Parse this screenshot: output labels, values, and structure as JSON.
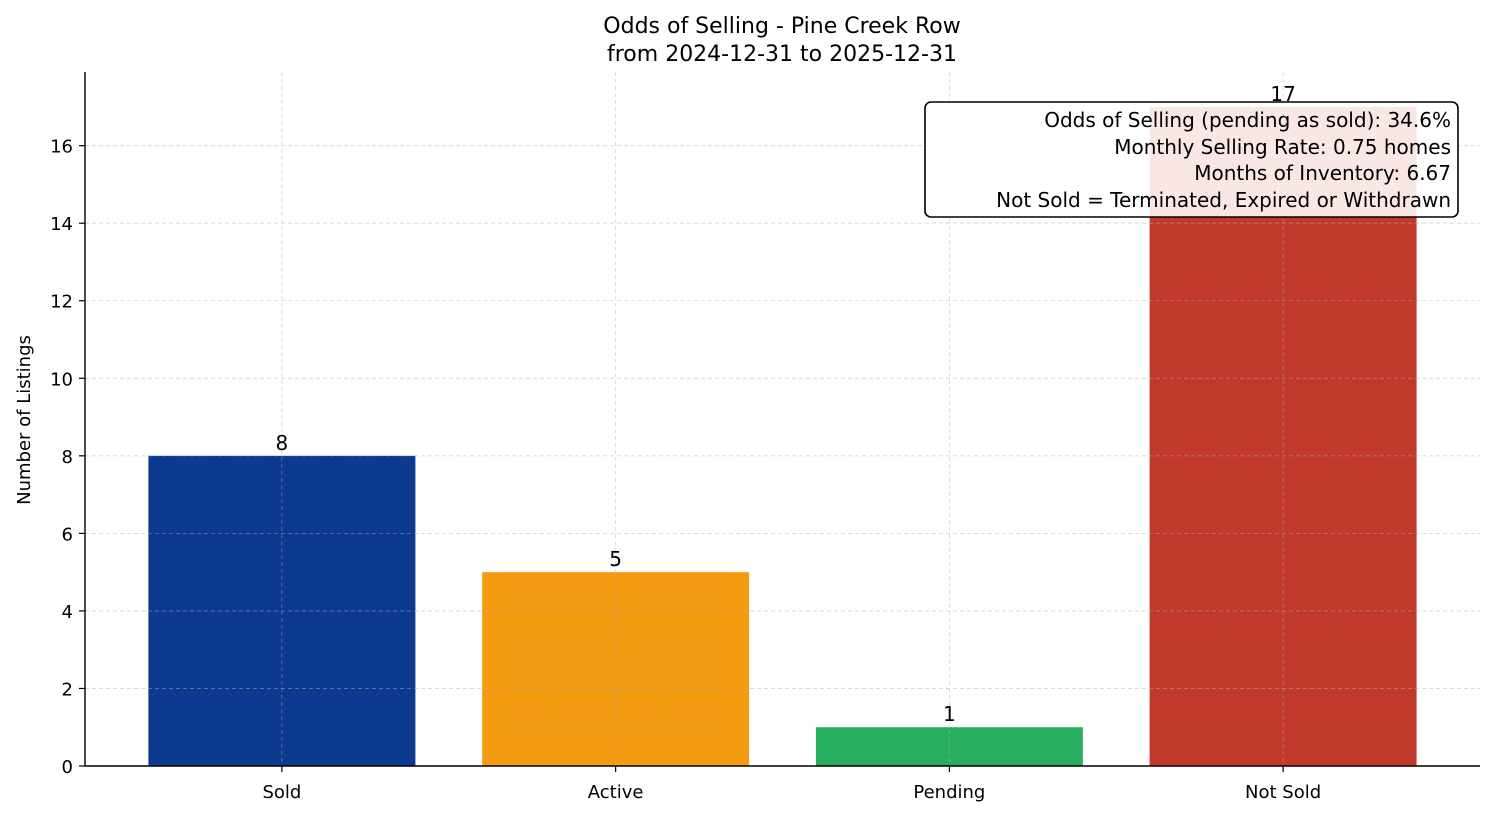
{
  "chart_data": {
    "type": "bar",
    "title": "Odds of Selling - Pine Creek Row",
    "subtitle": "from 2024-12-31 to 2025-12-31",
    "xlabel": "",
    "ylabel": "Number of Listings",
    "categories": [
      "Sold",
      "Active",
      "Pending",
      "Not Sold"
    ],
    "values": [
      8,
      5,
      1,
      17
    ],
    "colors": [
      "#0b3a8e",
      "#f39c12",
      "#27ae60",
      "#c0392b"
    ],
    "ylim": [
      0,
      17.9
    ],
    "yticks": [
      0,
      2,
      4,
      6,
      8,
      10,
      12,
      14,
      16
    ],
    "grid": true,
    "annotation": {
      "lines": [
        "Odds of Selling (pending as sold): 34.6%",
        "Monthly Selling Rate: 0.75 homes",
        "Months of Inventory: 6.67",
        "Not Sold = Terminated, Expired or Withdrawn"
      ],
      "placement": "top-right"
    }
  }
}
